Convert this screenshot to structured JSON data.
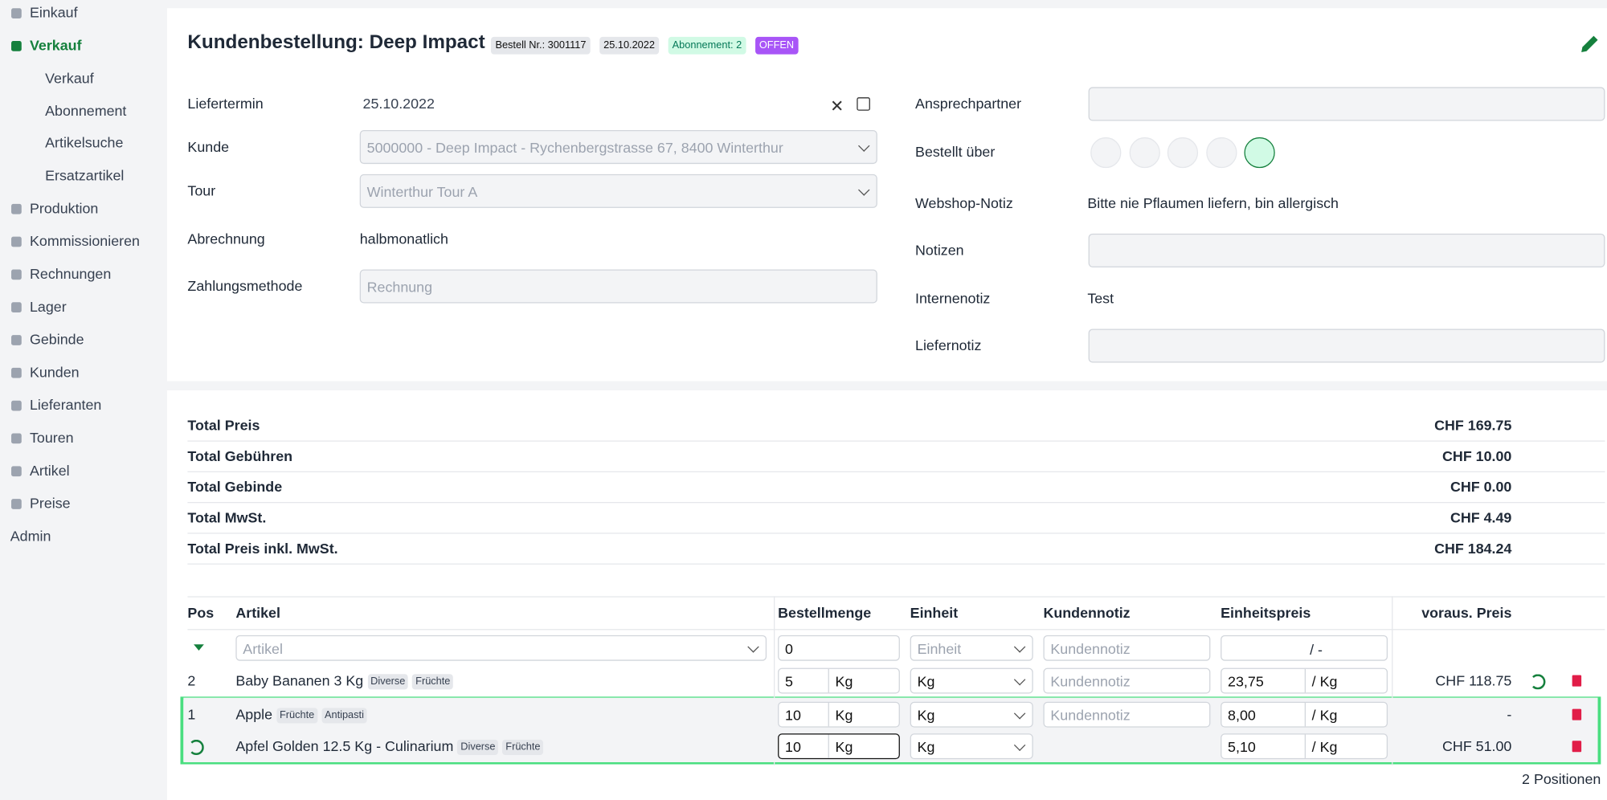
{
  "sidebar": {
    "items": [
      {
        "label": "Einkauf"
      },
      {
        "label": "Verkauf",
        "active": true,
        "children": [
          "Verkauf",
          "Abonnement",
          "Artikelsuche",
          "Ersatzartikel"
        ]
      },
      {
        "label": "Produktion"
      },
      {
        "label": "Kommissionieren"
      },
      {
        "label": "Rechnungen"
      },
      {
        "label": "Lager"
      },
      {
        "label": "Gebinde"
      },
      {
        "label": "Kunden"
      },
      {
        "label": "Lieferanten"
      },
      {
        "label": "Touren"
      },
      {
        "label": "Artikel"
      },
      {
        "label": "Preise"
      },
      {
        "label": "Admin",
        "noicon": true
      }
    ]
  },
  "header": {
    "title": "Kundenbestellung: Deep Impact",
    "badges": [
      "Bestell Nr.: 3001117",
      "25.10.2022",
      "Abonnement: 2",
      "OFFEN"
    ]
  },
  "form": {
    "left": [
      {
        "label": "Liefertermin",
        "value": "25.10.2022",
        "kind": "date"
      },
      {
        "label": "Kunde",
        "value": "5000000 - Deep Impact - Rychenbergstrasse 67, 8400 Winterthur",
        "kind": "select"
      },
      {
        "label": "Tour",
        "value": "Winterthur Tour A",
        "kind": "select"
      },
      {
        "label": "Abrechnung",
        "value": "halbmonatlich",
        "kind": "text"
      },
      {
        "label": "Zahlungsmethode",
        "value": "Rechnung",
        "kind": "input"
      }
    ],
    "right": [
      {
        "label": "Ansprechpartner",
        "kind": "input"
      },
      {
        "label": "Bestellt über",
        "kind": "icons"
      },
      {
        "label": "Webshop-Notiz",
        "value": "Bitte nie Pflaumen liefern, bin allergisch",
        "kind": "text"
      },
      {
        "label": "Notizen",
        "kind": "textarea"
      },
      {
        "label": "Internenotiz",
        "value": "Test",
        "kind": "text"
      },
      {
        "label": "Liefernotiz",
        "kind": "textarea"
      }
    ]
  },
  "totals": [
    {
      "label": "Total Preis",
      "value": "CHF 169.75"
    },
    {
      "label": "Total Gebühren",
      "value": "CHF 10.00"
    },
    {
      "label": "Total Gebinde",
      "value": "CHF 0.00"
    },
    {
      "label": "Total MwSt.",
      "value": "CHF 4.49"
    },
    {
      "label": "Total Preis inkl. MwSt.",
      "value": "CHF 184.24"
    }
  ],
  "table": {
    "headers": [
      "Pos",
      "Artikel",
      "Bestellmenge",
      "Einheit",
      "Kundennotiz",
      "Einheitspreis",
      "voraus. Preis"
    ],
    "new_row": {
      "article": "Artikel",
      "qty": "0",
      "unit": "Einheit",
      "note": "Kundennotiz",
      "price_unit": "/ -"
    },
    "rows": [
      {
        "pos": "2",
        "article": "Baby Bananen 3 Kg",
        "tags": [
          "Diverse",
          "Früchte"
        ],
        "qty": "5",
        "qty_unit": "Kg",
        "unit": "Kg",
        "note": "Kundennotiz",
        "price": "23,75",
        "price_unit": "/ Kg",
        "total": "CHF 118.75"
      },
      {
        "pos": "1",
        "article": "Apple",
        "tags": [
          "Früchte",
          "Antipasti"
        ],
        "qty": "10",
        "qty_unit": "Kg",
        "unit": "Kg",
        "note": "Kundennotiz",
        "price": "8,00",
        "price_unit": "/ Kg",
        "total": "-"
      },
      {
        "article": "Apfel Golden 12.5 Kg - Culinarium",
        "tags": [
          "Diverse",
          "Früchte"
        ],
        "qty": "10",
        "qty_unit": "Kg",
        "unit": "Kg",
        "price": "5,10",
        "price_unit": "/ Kg",
        "total": "CHF 51.00"
      }
    ],
    "count": "2 Positionen"
  }
}
